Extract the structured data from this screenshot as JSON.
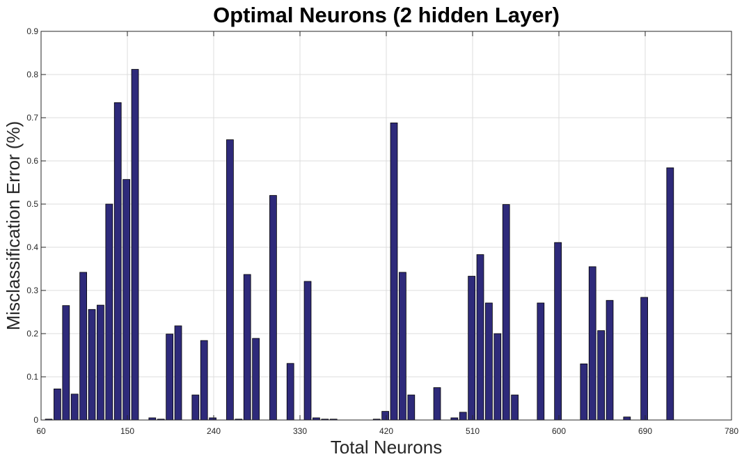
{
  "chart_data": {
    "type": "bar",
    "title": "Optimal Neurons (2 hidden Layer)",
    "xlabel": "Total Neurons",
    "ylabel": "Misclassification Error (%)",
    "xlim": [
      60,
      780
    ],
    "ylim": [
      0,
      0.9
    ],
    "xticks": [
      60,
      150,
      240,
      330,
      420,
      510,
      600,
      690,
      780
    ],
    "yticks": [
      0,
      0.1,
      0.2,
      0.3,
      0.4,
      0.5,
      0.6,
      0.7,
      0.8,
      0.9
    ],
    "grid": true,
    "bar_color": "#2e2a7a",
    "x": [
      68,
      77,
      86,
      95,
      104,
      113,
      122,
      131,
      140,
      149,
      158,
      167,
      176,
      185,
      194,
      203,
      212,
      221,
      230,
      239,
      248,
      257,
      266,
      275,
      284,
      293,
      302,
      311,
      320,
      329,
      338,
      347,
      356,
      365,
      374,
      383,
      392,
      401,
      410,
      419,
      428,
      437,
      446,
      455,
      464,
      473,
      482,
      491,
      500,
      509,
      518,
      527,
      536,
      545,
      554,
      563,
      572,
      581,
      590,
      599,
      608,
      617,
      626,
      635,
      644,
      653,
      662,
      671,
      680,
      689,
      698,
      707,
      716,
      725,
      734,
      743,
      752,
      761,
      770
    ],
    "values": [
      0.002,
      0.072,
      0.265,
      0.06,
      0.342,
      0.256,
      0.266,
      0.5,
      0.735,
      0.557,
      0.812,
      0,
      0.005,
      0.002,
      0.199,
      0.218,
      0,
      0.058,
      0.184,
      0.005,
      0,
      0.649,
      0.002,
      0.337,
      0.189,
      0,
      0.52,
      0,
      0.131,
      0,
      0.321,
      0.005,
      0.002,
      0.002,
      0,
      0,
      0,
      0,
      0.002,
      0.02,
      0.688,
      0.342,
      0.058,
      0,
      0,
      0.075,
      0,
      0.005,
      0.018,
      0.333,
      0.383,
      0.271,
      0.2,
      0.499,
      0.058,
      0,
      0,
      0.271,
      0,
      0.411,
      0,
      0,
      0.13,
      0.355,
      0.207,
      0.277,
      0,
      0.007,
      0,
      0.284,
      0,
      0,
      0.584,
      0,
      0,
      0,
      0,
      0,
      0
    ]
  }
}
